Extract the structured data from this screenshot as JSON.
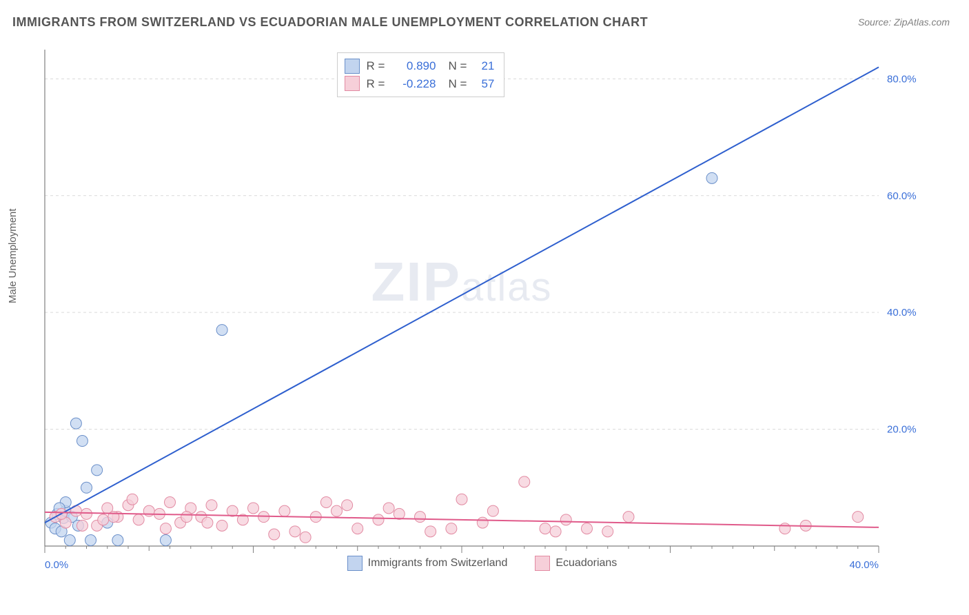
{
  "title": "IMMIGRANTS FROM SWITZERLAND VS ECUADORIAN MALE UNEMPLOYMENT CORRELATION CHART",
  "source": "Source: ZipAtlas.com",
  "ylabel": "Male Unemployment",
  "watermark": "ZIPatlas",
  "chart": {
    "type": "scatter",
    "xlim": [
      0,
      40
    ],
    "ylim": [
      0,
      85
    ],
    "xticks": [
      0,
      10,
      20,
      30,
      40
    ],
    "xtick_labels": [
      "0.0%",
      "",
      "",
      "",
      "40.0%"
    ],
    "yticks": [
      20,
      40,
      60,
      80
    ],
    "ytick_labels": [
      "20.0%",
      "40.0%",
      "60.0%",
      "80.0%"
    ],
    "grid_color": "#d9d9d9",
    "axis_color": "#808080",
    "background": "#ffffff",
    "series": [
      {
        "name": "Immigrants from Switzerland",
        "color_fill": "#c2d4ef",
        "color_stroke": "#6a8fc9",
        "marker_radius": 8,
        "line_color": "#2e5fce",
        "line_width": 2,
        "R": "0.890",
        "N": "21",
        "trend": {
          "x1": 0,
          "y1": 4,
          "x2": 40,
          "y2": 82
        },
        "points": [
          [
            0.3,
            4.0
          ],
          [
            0.5,
            3.0
          ],
          [
            0.6,
            5.5
          ],
          [
            0.8,
            2.5
          ],
          [
            0.9,
            4.8
          ],
          [
            1.0,
            6.0
          ],
          [
            1.2,
            1.0
          ],
          [
            1.3,
            5.0
          ],
          [
            1.5,
            21.0
          ],
          [
            1.8,
            18.0
          ],
          [
            2.0,
            10.0
          ],
          [
            2.2,
            1.0
          ],
          [
            2.5,
            13.0
          ],
          [
            3.0,
            4.0
          ],
          [
            3.5,
            1.0
          ],
          [
            5.8,
            1.0
          ],
          [
            8.5,
            37.0
          ],
          [
            32.0,
            63.0
          ],
          [
            1.0,
            7.5
          ],
          [
            1.6,
            3.5
          ],
          [
            0.7,
            6.5
          ]
        ]
      },
      {
        "name": "Ecuadorians",
        "color_fill": "#f6cfd9",
        "color_stroke": "#e28aa2",
        "marker_radius": 8,
        "line_color": "#e05a8a",
        "line_width": 2,
        "R": "-0.228",
        "N": "57",
        "trend": {
          "x1": 0,
          "y1": 5.8,
          "x2": 40,
          "y2": 3.2
        },
        "points": [
          [
            0.5,
            5.0
          ],
          [
            1.0,
            4.0
          ],
          [
            1.5,
            6.0
          ],
          [
            2.0,
            5.5
          ],
          [
            2.5,
            3.5
          ],
          [
            3.0,
            6.5
          ],
          [
            3.5,
            5.0
          ],
          [
            4.0,
            7.0
          ],
          [
            4.5,
            4.5
          ],
          [
            5.0,
            6.0
          ],
          [
            5.5,
            5.5
          ],
          [
            6.0,
            7.5
          ],
          [
            6.5,
            4.0
          ],
          [
            7.0,
            6.5
          ],
          [
            7.5,
            5.0
          ],
          [
            8.0,
            7.0
          ],
          [
            8.5,
            3.5
          ],
          [
            9.0,
            6.0
          ],
          [
            9.5,
            4.5
          ],
          [
            10.0,
            6.5
          ],
          [
            11.0,
            2.0
          ],
          [
            12.0,
            2.5
          ],
          [
            13.0,
            5.0
          ],
          [
            13.5,
            7.5
          ],
          [
            14.0,
            6.0
          ],
          [
            14.5,
            7.0
          ],
          [
            15.0,
            3.0
          ],
          [
            16.0,
            4.5
          ],
          [
            16.5,
            6.5
          ],
          [
            17.0,
            5.5
          ],
          [
            18.0,
            5.0
          ],
          [
            18.5,
            2.5
          ],
          [
            19.5,
            3.0
          ],
          [
            20.0,
            8.0
          ],
          [
            21.0,
            4.0
          ],
          [
            21.5,
            6.0
          ],
          [
            23.0,
            11.0
          ],
          [
            24.0,
            3.0
          ],
          [
            24.5,
            2.5
          ],
          [
            25.0,
            4.5
          ],
          [
            26.0,
            3.0
          ],
          [
            27.0,
            2.5
          ],
          [
            28.0,
            5.0
          ],
          [
            35.5,
            3.0
          ],
          [
            36.5,
            3.5
          ],
          [
            39.0,
            5.0
          ],
          [
            12.5,
            1.5
          ],
          [
            4.2,
            8.0
          ],
          [
            5.8,
            3.0
          ],
          [
            6.8,
            5.0
          ],
          [
            7.8,
            4.0
          ],
          [
            2.8,
            4.5
          ],
          [
            3.3,
            5.0
          ],
          [
            1.8,
            3.5
          ],
          [
            0.8,
            5.5
          ],
          [
            10.5,
            5.0
          ],
          [
            11.5,
            6.0
          ]
        ]
      }
    ]
  },
  "legend": {
    "series1_label": "Immigrants from Switzerland",
    "series2_label": "Ecuadorians"
  },
  "stats_box": {
    "R_label": "R",
    "N_label": "N",
    "equals": "="
  }
}
